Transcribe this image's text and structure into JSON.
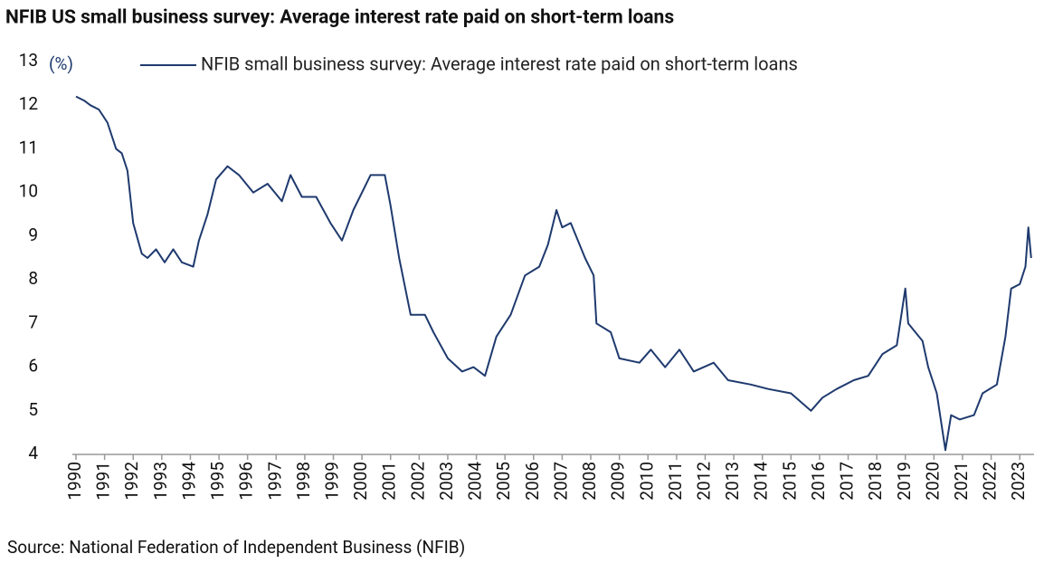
{
  "chart_data": {
    "type": "line",
    "title": "NFIB US small business survey: Average interest rate paid on short-term loans",
    "y_label": "(%)",
    "source": "Source: National Federation of Independent Business (NFIB)",
    "x": [
      1990.0,
      1990.3,
      1990.5,
      1990.8,
      1991.1,
      1991.4,
      1991.6,
      1991.8,
      1992.0,
      1992.3,
      1992.5,
      1992.8,
      1993.1,
      1993.4,
      1993.7,
      1994.1,
      1994.3,
      1994.6,
      1994.9,
      1995.3,
      1995.7,
      1996.2,
      1996.7,
      1997.2,
      1997.5,
      1997.9,
      1998.4,
      1998.9,
      1999.3,
      1999.7,
      2000.3,
      2000.8,
      2001.0,
      2001.3,
      2001.7,
      2002.2,
      2002.5,
      2003.0,
      2003.5,
      2003.9,
      2004.3,
      2004.7,
      2005.2,
      2005.7,
      2006.2,
      2006.5,
      2006.8,
      2007.0,
      2007.3,
      2007.8,
      2008.1,
      2008.2,
      2008.7,
      2009.0,
      2009.7,
      2010.1,
      2010.6,
      2011.1,
      2011.6,
      2012.3,
      2012.8,
      2013.6,
      2014.2,
      2015.0,
      2015.7,
      2016.1,
      2016.6,
      2017.2,
      2017.7,
      2018.2,
      2018.7,
      2019.0,
      2019.1,
      2019.6,
      2019.8,
      2020.1,
      2020.4,
      2020.6,
      2020.9,
      2021.4,
      2021.7,
      2022.2,
      2022.5,
      2022.7,
      2023.0,
      2023.2,
      2023.3,
      2023.4
    ],
    "series": [
      {
        "name": "NFIB small business survey: Average interest rate paid on short-term loans",
        "color": "#1f3a6e",
        "values": [
          12.2,
          12.1,
          12.0,
          11.9,
          11.6,
          11.0,
          10.9,
          10.5,
          9.3,
          8.6,
          8.5,
          8.7,
          8.4,
          8.7,
          8.4,
          8.3,
          8.9,
          9.5,
          10.3,
          10.6,
          10.4,
          10.0,
          10.2,
          9.8,
          10.4,
          9.9,
          9.9,
          9.3,
          8.9,
          9.6,
          10.4,
          10.4,
          9.7,
          8.5,
          7.2,
          7.2,
          6.8,
          6.2,
          5.9,
          6.0,
          5.8,
          6.7,
          7.2,
          8.1,
          8.3,
          8.8,
          9.6,
          9.2,
          9.3,
          8.5,
          8.1,
          7.0,
          6.8,
          6.2,
          6.1,
          6.4,
          6.0,
          6.4,
          5.9,
          6.1,
          5.7,
          5.6,
          5.5,
          5.4,
          5.0,
          5.3,
          5.5,
          5.7,
          5.8,
          6.3,
          6.5,
          7.8,
          7.0,
          6.6,
          6.0,
          5.4,
          4.1,
          4.9,
          4.8,
          4.9,
          5.4,
          5.6,
          6.7,
          7.8,
          7.9,
          8.3,
          9.2,
          8.5
        ]
      }
    ],
    "xlim": [
      1990,
      2023.5
    ],
    "xticks": [
      1990,
      1991,
      1992,
      1993,
      1994,
      1995,
      1996,
      1997,
      1998,
      1999,
      2000,
      2001,
      2002,
      2003,
      2004,
      2005,
      2006,
      2007,
      2008,
      2009,
      2010,
      2011,
      2012,
      2013,
      2014,
      2015,
      2016,
      2017,
      2018,
      2019,
      2020,
      2021,
      2022,
      2023
    ],
    "ylim": [
      4,
      13
    ],
    "yticks": [
      4,
      5,
      6,
      7,
      8,
      9,
      10,
      11,
      12,
      13
    ],
    "legend": "top"
  }
}
